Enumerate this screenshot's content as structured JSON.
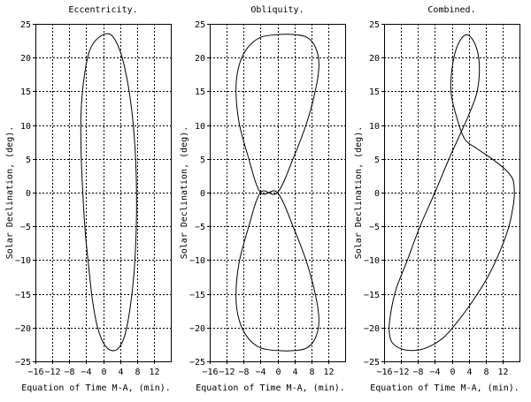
{
  "chart_data": [
    {
      "type": "line",
      "title": "Eccentricity.",
      "xlabel": "Equation of Time M-A, (min).",
      "ylabel": "Solar Declination, (deg).",
      "xlim": [
        -16,
        16
      ],
      "ylim": [
        -25,
        25
      ],
      "xticks": [
        -16,
        -12,
        -8,
        -4,
        0,
        4,
        8,
        12
      ],
      "yticks": [
        -25,
        -20,
        -15,
        -10,
        -5,
        0,
        5,
        10,
        15,
        20,
        25
      ],
      "grid": true,
      "series": [
        {
          "x": [
            1.8,
            4.0,
            5.6,
            6.8,
            7.6,
            7.9,
            7.8,
            7.3,
            6.4,
            5.2,
            3.7,
            2.0,
            0.3,
            -1.3,
            -2.5,
            -3.4,
            -4.2,
            -4.8,
            -5.2,
            -5.2,
            -4.5,
            -3.2,
            -1.0,
            1.8
          ],
          "y": [
            23.4,
            21.0,
            17.0,
            12.0,
            6.0,
            0.0,
            -6.0,
            -12.0,
            -17.0,
            -21.0,
            -23.0,
            -23.4,
            -22.5,
            -20.0,
            -16.0,
            -11.0,
            -6.0,
            0.0,
            6.0,
            12.0,
            17.0,
            21.0,
            23.0,
            23.4
          ]
        }
      ]
    },
    {
      "type": "line",
      "title": "Obliquity.",
      "xlabel": "Equation of Time M-A, (min).",
      "ylabel": "Solar Declination, (deg).",
      "xlim": [
        -16,
        16
      ],
      "ylim": [
        -25,
        25
      ],
      "xticks": [
        -16,
        -12,
        -8,
        -4,
        0,
        4,
        8,
        12
      ],
      "yticks": [
        -25,
        -20,
        -15,
        -10,
        -5,
        0,
        5,
        10,
        15,
        20,
        25
      ],
      "grid": true,
      "series": [
        {
          "x": [
            0.0,
            4.0,
            7.0,
            9.1,
            9.8,
            9.0,
            7.0,
            4.0,
            0.0,
            -4.0,
            -7.0,
            -9.0,
            -9.8,
            -9.1,
            -7.0,
            -4.0,
            0.0,
            4.0,
            7.0,
            9.1,
            9.8,
            9.0,
            7.0,
            4.0,
            0.0,
            -4.0,
            -7.0,
            -9.0,
            -9.8,
            -9.1,
            -7.0,
            -4.0,
            0.0
          ],
          "y": [
            0.0,
            5.5,
            10.5,
            15.5,
            19.0,
            21.5,
            23.0,
            23.4,
            23.4,
            23.0,
            21.5,
            19.0,
            15.5,
            10.5,
            5.5,
            0.0,
            0.0,
            -5.5,
            -10.5,
            -15.5,
            -19.0,
            -21.5,
            -23.0,
            -23.4,
            -23.4,
            -23.0,
            -21.5,
            -19.0,
            -15.5,
            -10.5,
            -5.5,
            0.0,
            0.0
          ]
        }
      ]
    },
    {
      "type": "line",
      "title": "Combined.",
      "xlabel": "Equation of Time M-A, (min).",
      "ylabel": "Solar Declination, (deg).",
      "xlim": [
        -16,
        16
      ],
      "ylim": [
        -25,
        25
      ],
      "xticks": [
        -16,
        -12,
        -8,
        -4,
        0,
        4,
        8,
        12
      ],
      "yticks": [
        -25,
        -20,
        -15,
        -10,
        -5,
        0,
        5,
        10,
        15,
        20,
        25
      ],
      "grid": true,
      "series": [
        {
          "x": [
            3.5,
            5.5,
            6.5,
            6.0,
            4.0,
            1.5,
            -1.0,
            -4.0,
            -7.5,
            -10.5,
            -13.0,
            -14.2,
            -14.8,
            -14.3,
            -12.5,
            -9.5,
            -6.0,
            -2.0,
            1.5,
            5.0,
            8.5,
            11.5,
            13.5,
            14.5,
            14.8,
            14.4,
            12.5,
            9.5,
            6.0,
            3.0,
            1.0,
            -0.2,
            0.2,
            1.5,
            3.5
          ],
          "y": [
            23.4,
            22.0,
            19.0,
            15.0,
            11.5,
            8.0,
            4.5,
            0.0,
            -5.0,
            -10.0,
            -14.0,
            -17.0,
            -20.0,
            -22.0,
            -23.0,
            -23.4,
            -23.0,
            -21.5,
            -19.0,
            -16.0,
            -12.5,
            -8.5,
            -5.0,
            -2.0,
            0.0,
            2.0,
            3.5,
            5.0,
            6.5,
            8.0,
            11.5,
            15.0,
            19.0,
            22.0,
            23.4
          ]
        }
      ]
    }
  ]
}
